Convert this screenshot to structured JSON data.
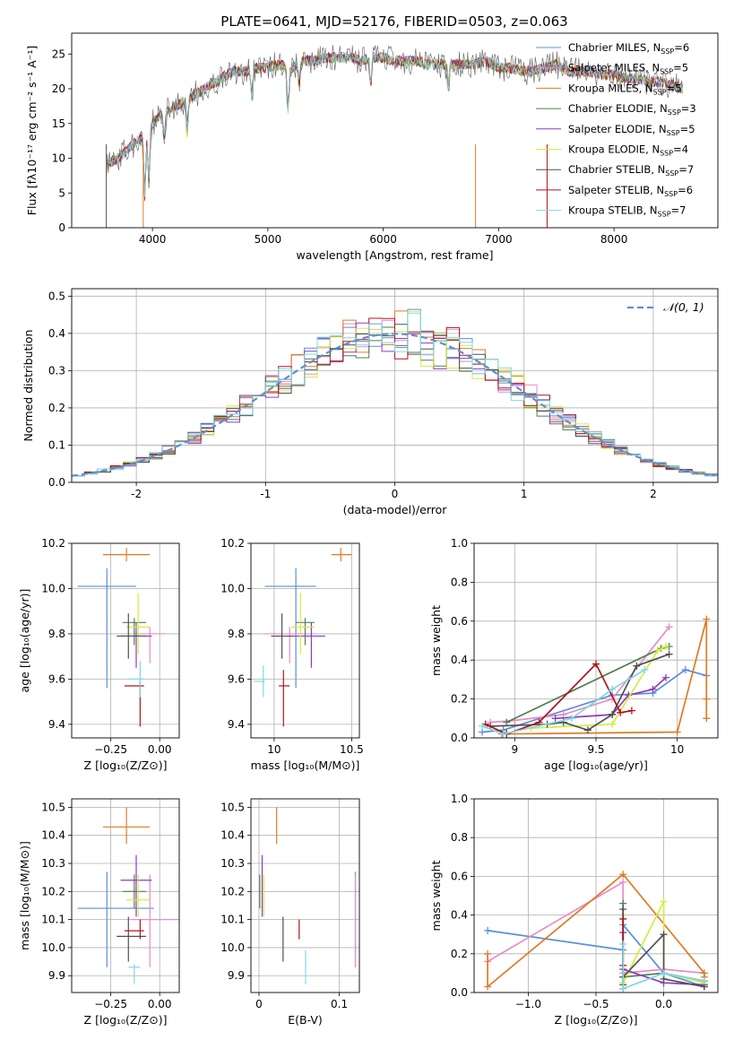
{
  "suptitle": "PLATE=0641, MJD=52176, FIBERID=0503, z=0.063",
  "colors": {
    "chabrier_miles": "#5b8fd6",
    "salpeter_miles": "#e88cc6",
    "kroupa_miles": "#e07a24",
    "chabrier_elodie": "#4f7f4f",
    "salpeter_elodie": "#8a3cbf",
    "kroupa_elodie": "#d4ec3c",
    "chabrier_stelib": "#505050",
    "salpeter_stelib": "#b0141a",
    "kroupa_stelib": "#7fd8e6",
    "normal_curve": "#5b8fd6",
    "grid": "#b0b0b0"
  },
  "legend": [
    {
      "name": "Chabrier MILES",
      "n": "6",
      "color": "#5b8fd6"
    },
    {
      "name": "Salpeter MILES",
      "n": "5",
      "color": "#e88cc6"
    },
    {
      "name": "Kroupa MILES",
      "n": "5",
      "color": "#e07a24"
    },
    {
      "name": "Chabrier ELODIE",
      "n": "3",
      "color": "#4f7f4f"
    },
    {
      "name": "Salpeter ELODIE",
      "n": "5",
      "color": "#8a3cbf"
    },
    {
      "name": "Kroupa ELODIE",
      "n": "4",
      "color": "#d4ec3c"
    },
    {
      "name": "Chabrier STELIB",
      "n": "7",
      "color": "#505050"
    },
    {
      "name": "Salpeter STELIB",
      "n": "6",
      "color": "#b0141a"
    },
    {
      "name": "Kroupa STELIB",
      "n": "7",
      "color": "#7fd8e6"
    }
  ],
  "chart_data": [
    {
      "id": "spectrum",
      "type": "line",
      "xlabel": "wavelength [Angstrom, rest frame]",
      "ylabel": "Flux [fλ10⁻¹⁷ erg cm⁻² s⁻¹ A⁻¹]",
      "xlim": [
        3300,
        8900
      ],
      "ylim": [
        0,
        28
      ],
      "xticks": [
        4000,
        5000,
        6000,
        7000,
        8000
      ],
      "yticks": [
        0,
        5,
        10,
        15,
        20,
        25
      ],
      "envelope": {
        "x": [
          3600,
          3700,
          3800,
          3900,
          4000,
          4100,
          4200,
          4300,
          4400,
          4500,
          4600,
          4700,
          4800,
          4900,
          5000,
          5100,
          5200,
          5300,
          5400,
          5500,
          5600,
          5700,
          5800,
          5900,
          6000,
          6100,
          6200,
          6300,
          6400,
          6500,
          6600,
          6700,
          6800,
          6900,
          7000,
          7100,
          7200,
          7300,
          7400,
          7500,
          7600,
          7700,
          7800,
          7900,
          8000,
          8100,
          8200,
          8300,
          8400,
          8500,
          8600
        ],
        "y": [
          9,
          10,
          11.5,
          13,
          15,
          16.5,
          17.5,
          18.5,
          19.5,
          20.5,
          21.5,
          22.5,
          22.5,
          23,
          23,
          23.5,
          23,
          24,
          24,
          24.5,
          24.5,
          24.5,
          24,
          24.5,
          24.5,
          24,
          24,
          24,
          23.5,
          23.5,
          23.5,
          23.5,
          23.5,
          24,
          23,
          23,
          22.5,
          22.5,
          23,
          23.5,
          22.5,
          22.5,
          22.5,
          22,
          22,
          21.5,
          21.5,
          21,
          21,
          20.5,
          20
        ]
      },
      "legend_position": "upper-right"
    },
    {
      "id": "residuals",
      "type": "histogram",
      "xlabel": "(data-model)/error",
      "ylabel": "Normed distribution",
      "xlim": [
        -2.5,
        2.5
      ],
      "ylim": [
        0,
        0.52
      ],
      "xticks": [
        -2,
        -1,
        0,
        1,
        2
      ],
      "yticks": [
        0.0,
        0.1,
        0.2,
        0.3,
        0.4,
        0.5
      ],
      "bin_width": 0.1,
      "grid": true,
      "legend": "𝒩(0, 1)",
      "legend_position": "upper-right"
    },
    {
      "id": "age_vs_Z",
      "type": "errorbar",
      "xlabel": "Z [log₁₀(Z/Z⊙)]",
      "ylabel": "age  [log₁₀(age/yr)]",
      "xlim": [
        -0.45,
        0.1
      ],
      "ylim": [
        9.34,
        10.2
      ],
      "xticks": [
        -0.25,
        0.0
      ],
      "xticklabels": [
        "−0.25",
        "0.00"
      ],
      "yticks": [
        9.4,
        9.6,
        9.8,
        10.0,
        10.2
      ],
      "grid": true,
      "points": [
        {
          "color": "#5b8fd6",
          "x": -0.27,
          "xerr": [
            0.15,
            0.15
          ],
          "y": 10.01,
          "yerr": [
            0.45,
            0.08
          ]
        },
        {
          "color": "#e88cc6",
          "x": -0.05,
          "xerr": [
            0.08,
            0.08
          ],
          "y": 9.8,
          "yerr": [
            0.13,
            0.03
          ]
        },
        {
          "color": "#e07a24",
          "x": -0.17,
          "xerr": [
            0.12,
            0.12
          ],
          "y": 10.15,
          "yerr": [
            0.03,
            0.03
          ]
        },
        {
          "color": "#4f7f4f",
          "x": -0.13,
          "xerr": [
            0.06,
            0.06
          ],
          "y": 9.85,
          "yerr": [
            0.1,
            0.02
          ]
        },
        {
          "color": "#8a3cbf",
          "x": -0.12,
          "xerr": [
            0.08,
            0.08
          ],
          "y": 9.79,
          "yerr": [
            0.14,
            0.06
          ]
        },
        {
          "color": "#d4ec3c",
          "x": -0.11,
          "xerr": [
            0.06,
            0.06
          ],
          "y": 9.83,
          "yerr": [
            0.12,
            0.15
          ]
        },
        {
          "color": "#505050",
          "x": -0.16,
          "xerr": [
            0.06,
            0.09
          ],
          "y": 9.79,
          "yerr": [
            0.1,
            0.1
          ]
        },
        {
          "color": "#b0141a",
          "x": -0.1,
          "xerr": [
            0.08,
            0.02
          ],
          "y": 9.57,
          "yerr": [
            0.18,
            0.02
          ]
        },
        {
          "color": "#7fd8e6",
          "x": -0.1,
          "xerr": [
            0.06,
            0.02
          ],
          "y": 9.6,
          "yerr": [
            0.08,
            0.08
          ]
        }
      ]
    },
    {
      "id": "age_vs_mass",
      "type": "errorbar",
      "xlabel": "mass [log₁₀(M/M⊙)]",
      "xlim": [
        9.85,
        10.55
      ],
      "ylim": [
        9.34,
        10.2
      ],
      "xticks": [
        10.0,
        10.5
      ],
      "yticks": [
        9.4,
        9.6,
        9.8,
        10.0,
        10.2
      ],
      "grid": true,
      "points": [
        {
          "color": "#5b8fd6",
          "x": 10.14,
          "xerr": [
            0.2,
            0.13
          ],
          "y": 10.01,
          "yerr": [
            0.45,
            0.08
          ]
        },
        {
          "color": "#e88cc6",
          "x": 10.1,
          "xerr": [
            0.17,
            0.17
          ],
          "y": 9.8,
          "yerr": [
            0.13,
            0.03
          ]
        },
        {
          "color": "#e07a24",
          "x": 10.43,
          "xerr": [
            0.06,
            0.07
          ],
          "y": 10.15,
          "yerr": [
            0.03,
            0.03
          ]
        },
        {
          "color": "#4f7f4f",
          "x": 10.2,
          "xerr": [
            0.06,
            0.06
          ],
          "y": 9.85,
          "yerr": [
            0.1,
            0.02
          ]
        },
        {
          "color": "#8a3cbf",
          "x": 10.24,
          "xerr": [
            0.13,
            0.09
          ],
          "y": 9.79,
          "yerr": [
            0.14,
            0.06
          ]
        },
        {
          "color": "#d4ec3c",
          "x": 10.17,
          "xerr": [
            0.06,
            0.09
          ],
          "y": 9.83,
          "yerr": [
            0.12,
            0.15
          ]
        },
        {
          "color": "#505050",
          "x": 10.05,
          "xerr": [
            0.07,
            0.07
          ],
          "y": 9.79,
          "yerr": [
            0.1,
            0.1
          ]
        },
        {
          "color": "#b0141a",
          "x": 10.06,
          "xerr": [
            0.03,
            0.04
          ],
          "y": 9.57,
          "yerr": [
            0.18,
            0.07
          ]
        },
        {
          "color": "#7fd8e6",
          "x": 9.93,
          "xerr": [
            0.06,
            0.01
          ],
          "y": 9.59,
          "yerr": [
            0.07,
            0.07
          ]
        }
      ]
    },
    {
      "id": "mass_weight_vs_age",
      "type": "line",
      "xlabel": "age  [log₁₀(age/yr)]",
      "ylabel": "mass weight",
      "xlim": [
        8.75,
        10.25
      ],
      "ylim": [
        0,
        1.0
      ],
      "xticks": [
        9.0,
        9.5,
        10.0
      ],
      "yticks": [
        0.0,
        0.2,
        0.4,
        0.6,
        0.8,
        1.0
      ],
      "grid": true,
      "series": [
        {
          "color": "#5b8fd6",
          "x": [
            8.8,
            8.93,
            9.6,
            9.85,
            10.05,
            10.18
          ],
          "y": [
            0.03,
            0.04,
            0.22,
            0.23,
            0.35,
            0.32
          ]
        },
        {
          "color": "#e88cc6",
          "x": [
            8.85,
            9.0,
            9.3,
            9.6,
            9.95
          ],
          "y": [
            0.08,
            0.09,
            0.12,
            0.2,
            0.57
          ]
        },
        {
          "color": "#e07a24",
          "x": [
            8.92,
            10.0,
            10.18,
            10.18,
            10.18
          ],
          "y": [
            0.02,
            0.03,
            0.61,
            0.2,
            0.1
          ]
        },
        {
          "color": "#4f7f4f",
          "x": [
            8.95,
            9.9,
            9.95
          ],
          "y": [
            0.08,
            0.46,
            0.47
          ]
        },
        {
          "color": "#8a3cbf",
          "x": [
            9.25,
            9.6,
            9.7,
            9.85,
            9.93
          ],
          "y": [
            0.1,
            0.12,
            0.22,
            0.25,
            0.31
          ]
        },
        {
          "color": "#d4ec3c",
          "x": [
            9.1,
            9.6,
            9.88,
            9.93
          ],
          "y": [
            0.05,
            0.07,
            0.45,
            0.47
          ]
        },
        {
          "color": "#505050",
          "x": [
            8.85,
            9.2,
            9.3,
            9.45,
            9.6,
            9.75,
            9.95
          ],
          "y": [
            0.06,
            0.07,
            0.08,
            0.04,
            0.12,
            0.37,
            0.43
          ]
        },
        {
          "color": "#b0141a",
          "x": [
            8.82,
            8.95,
            9.15,
            9.5,
            9.65,
            9.72
          ],
          "y": [
            0.07,
            0.02,
            0.08,
            0.38,
            0.13,
            0.14
          ]
        },
        {
          "color": "#7fd8e6",
          "x": [
            8.8,
            8.93,
            9.35,
            9.6,
            9.8
          ],
          "y": [
            0.06,
            0.02,
            0.1,
            0.25,
            0.35
          ]
        }
      ]
    },
    {
      "id": "mass_vs_Z",
      "type": "errorbar",
      "xlabel": "Z [log₁₀(Z/Z⊙)]",
      "ylabel": "mass [log₁₀(M/M⊙)]",
      "xlim": [
        -0.45,
        0.1
      ],
      "ylim": [
        9.84,
        10.53
      ],
      "xticks": [
        -0.25,
        0.0
      ],
      "xticklabels": [
        "−0.25",
        "0.00"
      ],
      "yticks": [
        9.9,
        10.0,
        10.1,
        10.2,
        10.3,
        10.4,
        10.5
      ],
      "grid": true,
      "points": [
        {
          "color": "#5b8fd6",
          "x": -0.27,
          "xerr": [
            0.15,
            0.24
          ],
          "y": 10.14,
          "yerr": [
            0.21,
            0.13
          ]
        },
        {
          "color": "#e88cc6",
          "x": -0.05,
          "xerr": [
            0.1,
            0.15
          ],
          "y": 10.1,
          "yerr": [
            0.17,
            0.16
          ]
        },
        {
          "color": "#e07a24",
          "x": -0.17,
          "xerr": [
            0.12,
            0.12
          ],
          "y": 10.43,
          "yerr": [
            0.06,
            0.07
          ]
        },
        {
          "color": "#4f7f4f",
          "x": -0.13,
          "xerr": [
            0.06,
            0.06
          ],
          "y": 10.2,
          "yerr": [
            0.06,
            0.06
          ]
        },
        {
          "color": "#8a3cbf",
          "x": -0.12,
          "xerr": [
            0.08,
            0.08
          ],
          "y": 10.24,
          "yerr": [
            0.13,
            0.09
          ]
        },
        {
          "color": "#d4ec3c",
          "x": -0.11,
          "xerr": [
            0.06,
            0.06
          ],
          "y": 10.17,
          "yerr": [
            0.06,
            0.09
          ]
        },
        {
          "color": "#505050",
          "x": -0.16,
          "xerr": [
            0.06,
            0.09
          ],
          "y": 10.04,
          "yerr": [
            0.09,
            0.07
          ]
        },
        {
          "color": "#b0141a",
          "x": -0.1,
          "xerr": [
            0.08,
            0.02
          ],
          "y": 10.06,
          "yerr": [
            0.03,
            0.04
          ]
        },
        {
          "color": "#7fd8e6",
          "x": -0.13,
          "xerr": [
            0.03,
            0.03
          ],
          "y": 9.93,
          "yerr": [
            0.06,
            0.01
          ]
        }
      ]
    },
    {
      "id": "mass_vs_ebv",
      "type": "errorbar",
      "xlabel": "E(B-V)",
      "xlim": [
        -0.01,
        0.125
      ],
      "ylim": [
        9.84,
        10.53
      ],
      "xticks": [
        0.0,
        0.1
      ],
      "yticks": [
        9.9,
        10.0,
        10.1,
        10.2,
        10.3,
        10.4,
        10.5
      ],
      "grid": true,
      "points": [
        {
          "color": "#5b8fd6",
          "x": 0.12,
          "xerr": [
            0,
            0
          ],
          "y": 10.14,
          "yerr": [
            0.21,
            0.13
          ]
        },
        {
          "color": "#e88cc6",
          "x": 0.12,
          "xerr": [
            0,
            0
          ],
          "y": 10.1,
          "yerr": [
            0.17,
            0.16
          ]
        },
        {
          "color": "#e07a24",
          "x": 0.022,
          "xerr": [
            0,
            0
          ],
          "y": 10.43,
          "yerr": [
            0.06,
            0.07
          ]
        },
        {
          "color": "#4f7f4f",
          "x": 0.001,
          "xerr": [
            0,
            0
          ],
          "y": 10.2,
          "yerr": [
            0.06,
            0.06
          ]
        },
        {
          "color": "#8a3cbf",
          "x": 0.004,
          "xerr": [
            0,
            0
          ],
          "y": 10.24,
          "yerr": [
            0.13,
            0.09
          ]
        },
        {
          "color": "#d4ec3c",
          "x": 0.006,
          "xerr": [
            0,
            0
          ],
          "y": 10.17,
          "yerr": [
            0.06,
            0.09
          ]
        },
        {
          "color": "#505050",
          "x": 0.03,
          "xerr": [
            0,
            0
          ],
          "y": 10.04,
          "yerr": [
            0.09,
            0.07
          ]
        },
        {
          "color": "#b0141a",
          "x": 0.05,
          "xerr": [
            0,
            0
          ],
          "y": 10.06,
          "yerr": [
            0.03,
            0.04
          ]
        },
        {
          "color": "#7fd8e6",
          "x": 0.058,
          "xerr": [
            0,
            0
          ],
          "y": 9.93,
          "yerr": [
            0.06,
            0.06
          ]
        }
      ]
    },
    {
      "id": "mass_weight_vs_Z",
      "type": "line",
      "xlabel": "Z [log₁₀(Z/Z⊙)]",
      "ylabel": "mass weight",
      "xlim": [
        -1.4,
        0.4
      ],
      "ylim": [
        0,
        1.0
      ],
      "xticks": [
        -1.0,
        -0.5,
        0.0
      ],
      "xticklabels": [
        "−1.0",
        "−0.5",
        "0.0"
      ],
      "yticks": [
        0.0,
        0.2,
        0.4,
        0.6,
        0.8,
        1.0
      ],
      "grid": true,
      "series": [
        {
          "color": "#5b8fd6",
          "x": [
            -1.3,
            -0.3,
            -0.3,
            0.0,
            0.3
          ],
          "y": [
            0.32,
            0.22,
            0.35,
            0.1,
            0.03
          ]
        },
        {
          "color": "#e88cc6",
          "x": [
            -1.3,
            -0.3,
            -0.3,
            0.0,
            0.3
          ],
          "y": [
            0.16,
            0.57,
            0.1,
            0.12,
            0.1
          ]
        },
        {
          "color": "#e07a24",
          "x": [
            -1.3,
            -1.3,
            -0.3,
            0.3,
            0.3
          ],
          "y": [
            0.2,
            0.03,
            0.61,
            0.1,
            0.08
          ]
        },
        {
          "color": "#4f7f4f",
          "x": [
            -0.3,
            -0.3,
            0.0,
            0.3
          ],
          "y": [
            0.46,
            0.08,
            0.1,
            0.06
          ]
        },
        {
          "color": "#8a3cbf",
          "x": [
            -0.3,
            -0.3,
            0.0,
            0.3
          ],
          "y": [
            0.31,
            0.12,
            0.05,
            0.04
          ]
        },
        {
          "color": "#d4ec3c",
          "x": [
            -0.3,
            0.0,
            0.0,
            0.3
          ],
          "y": [
            0.05,
            0.47,
            0.1,
            0.05
          ]
        },
        {
          "color": "#505050",
          "x": [
            -0.3,
            -0.3,
            -0.3,
            0.0,
            0.0,
            0.3
          ],
          "y": [
            0.43,
            0.04,
            0.08,
            0.3,
            0.07,
            0.03
          ]
        },
        {
          "color": "#b0141a",
          "x": [
            -0.3,
            -0.3,
            -0.3
          ],
          "y": [
            0.38,
            0.14,
            0.02
          ]
        },
        {
          "color": "#7fd8e6",
          "x": [
            -0.3,
            -0.3,
            0.0,
            0.3
          ],
          "y": [
            0.25,
            0.02,
            0.1,
            0.06
          ]
        }
      ]
    }
  ]
}
